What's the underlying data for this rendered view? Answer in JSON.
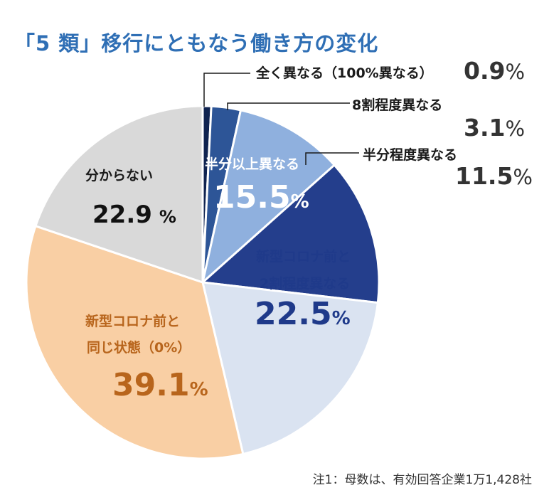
{
  "title": "「5 類」移行にともなう働き方の変化",
  "note": "注1：母数は、有効回答企業1万1,428社",
  "chart_data": {
    "type": "pie",
    "title": "「5 類」移行にともなう働き方の変化",
    "start": "12 o'clock",
    "direction": "clockwise",
    "slices": [
      {
        "name": "全く異なる（100%異なる）",
        "value": 0.9,
        "label": "0.9",
        "color": "#0f2350"
      },
      {
        "name": "8割程度異なる",
        "value": 3.1,
        "label": "3.1",
        "color": "#2d5597"
      },
      {
        "name": "半分程度異なる",
        "value": 11.5,
        "label": "11.5",
        "color": "#8fb0de"
      },
      {
        "name": "半分以上異なる",
        "value": 15.5,
        "label": "15.5",
        "color": "#243e8c"
      },
      {
        "name": "新型コロナ前と2割程度異なる",
        "value": 22.5,
        "label": "22.5",
        "color": "#dae3f1"
      },
      {
        "name": "新型コロナ前と同じ状態（0%）",
        "value": 39.1,
        "label": "39.1",
        "color": "#f9cfa4"
      },
      {
        "name": "分からない",
        "value": 22.9,
        "label": "22.9",
        "color": "#d9d9d9"
      }
    ]
  },
  "labels": {
    "full": {
      "name": "全く異なる（100%異なる）",
      "value": "0.9",
      "unit": "%"
    },
    "eighty": {
      "name": "8割程度異なる",
      "value": "3.1",
      "unit": "%"
    },
    "half": {
      "name": "半分程度異なる",
      "value": "11.5",
      "unit": "%"
    },
    "over_half": {
      "name": "半分以上異なる",
      "value": "15.5",
      "unit": "%"
    },
    "twenty": {
      "name_1": "新型コロナ前と",
      "name_2": "2割程度異なる",
      "value": "22.5",
      "unit": "%"
    },
    "same": {
      "name_1": "新型コロナ前と",
      "name_2": "同じ状態（0%）",
      "value": "39.1",
      "unit": "%"
    },
    "unknown": {
      "name": "分からない",
      "value": "22.9",
      "unit": "%"
    }
  },
  "colors": {
    "title": "#2f6fb5",
    "dark_navy": "#0f2350",
    "navy": "#1f3a8a",
    "orange_text": "#b8651c",
    "leader": "#1a1a1a"
  }
}
